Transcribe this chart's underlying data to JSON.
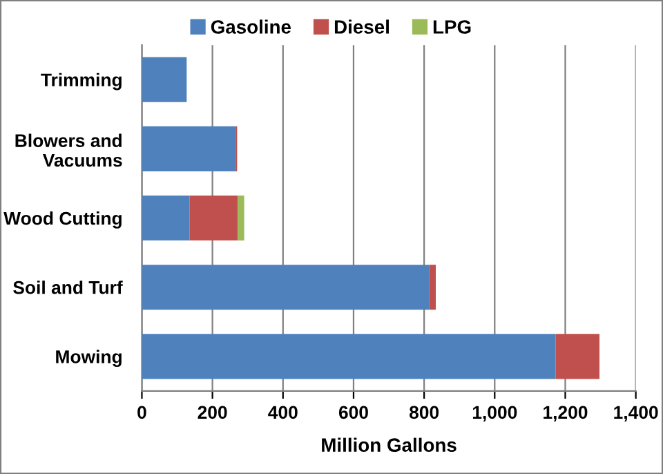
{
  "chart_data": {
    "type": "bar",
    "orientation": "horizontal",
    "stacked": true,
    "xlabel": "Million Gallons",
    "categories": [
      "Trimming",
      "Blowers and\nVacuums",
      "Wood Cutting",
      "Soil and Turf",
      "Mowing"
    ],
    "series": [
      {
        "name": "Gasoline",
        "color": "#4f81bd",
        "values": [
          127,
          265,
          135,
          814,
          1173
        ]
      },
      {
        "name": "Diesel",
        "color": "#c0504d",
        "values": [
          null,
          5,
          137,
          19,
          124
        ]
      },
      {
        "name": "LPG",
        "color": "#9bbb59",
        "values": [
          null,
          null,
          18,
          null,
          null
        ]
      }
    ],
    "xlim": [
      0,
      1400
    ],
    "xticks": [
      0,
      200,
      400,
      600,
      800,
      {
        "value": 1000,
        "label": "1,000"
      },
      {
        "value": 1200,
        "label": "1,200"
      },
      {
        "value": 1400,
        "label": "1,400"
      }
    ],
    "grid": "x",
    "legend": "top"
  }
}
